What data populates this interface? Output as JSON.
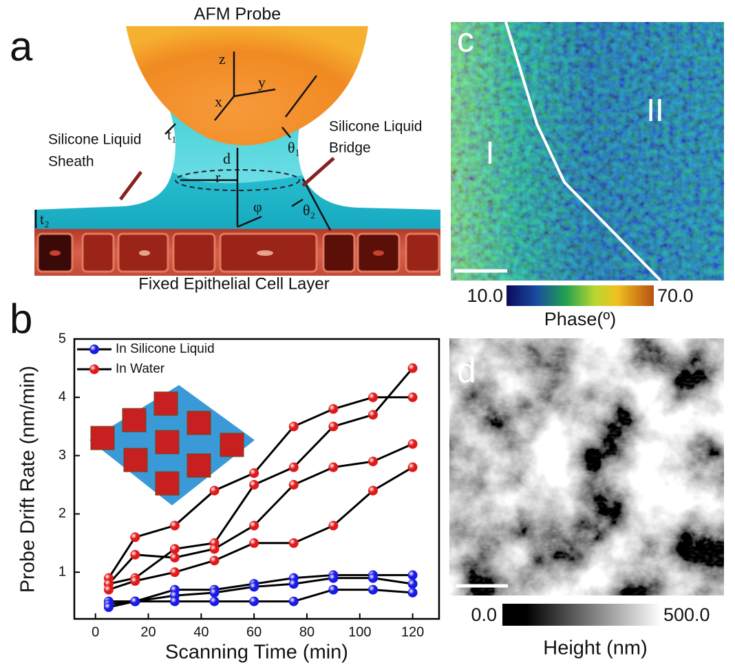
{
  "panel_a": {
    "letter": "a",
    "probe_label": "AFM Probe",
    "sheath_label": [
      "Silicone Liquid",
      "Sheath"
    ],
    "bridge_label": [
      "Silicone Liquid",
      "Bridge"
    ],
    "cell_label": "Fixed Epithelial Cell Layer",
    "symbols": {
      "z": "z",
      "y": "y",
      "x": "x",
      "t1": "t₁",
      "t2": "t₂",
      "theta1": "θ₁",
      "theta2": "θ₂",
      "d": "d",
      "r": "r",
      "phi": "φ"
    }
  },
  "panel_b": {
    "letter": "b"
  },
  "chart_data": {
    "type": "line",
    "x_label": "Scanning Time (min)",
    "y_label": "Probe Drift Rate (nm/min)",
    "x": [
      5,
      15,
      30,
      45,
      60,
      75,
      90,
      105,
      120
    ],
    "series": [
      {
        "name": "In Silicone Liquid",
        "color": "#1a1ae6",
        "runs": [
          [
            0.5,
            0.5,
            0.7,
            0.7,
            0.8,
            0.9,
            0.95,
            0.95,
            0.95
          ],
          [
            0.45,
            0.5,
            0.6,
            0.65,
            0.75,
            0.8,
            0.9,
            0.9,
            0.8
          ],
          [
            0.4,
            0.5,
            0.5,
            0.5,
            0.5,
            0.5,
            0.7,
            0.7,
            0.65
          ]
        ]
      },
      {
        "name": "In Water",
        "color": "#e01a1a",
        "runs": [
          [
            0.9,
            1.6,
            1.8,
            2.4,
            2.7,
            3.5,
            3.8,
            4.0,
            4.0
          ],
          [
            0.8,
            0.9,
            1.4,
            1.5,
            2.5,
            2.8,
            3.5,
            3.7,
            4.5
          ],
          [
            0.8,
            1.3,
            1.25,
            1.4,
            1.8,
            2.5,
            2.8,
            2.9,
            3.2
          ],
          [
            0.7,
            0.85,
            1.0,
            1.2,
            1.5,
            1.5,
            1.8,
            2.4,
            2.8
          ]
        ]
      }
    ],
    "xlim": [
      -8,
      130
    ],
    "ylim": [
      0.2,
      5
    ],
    "xticks": [
      0,
      20,
      40,
      60,
      80,
      100,
      120
    ],
    "yticks": [
      1,
      2,
      3,
      4,
      5
    ]
  },
  "panel_c": {
    "letter": "c",
    "region_1": "I",
    "region_2": "II",
    "scale_min": "10.0",
    "scale_max": "70.0",
    "scale_title": "Phase(º)"
  },
  "panel_d": {
    "letter": "d",
    "scale_min": "0.0",
    "scale_max": "500.0",
    "scale_title": "Height (nm)"
  }
}
